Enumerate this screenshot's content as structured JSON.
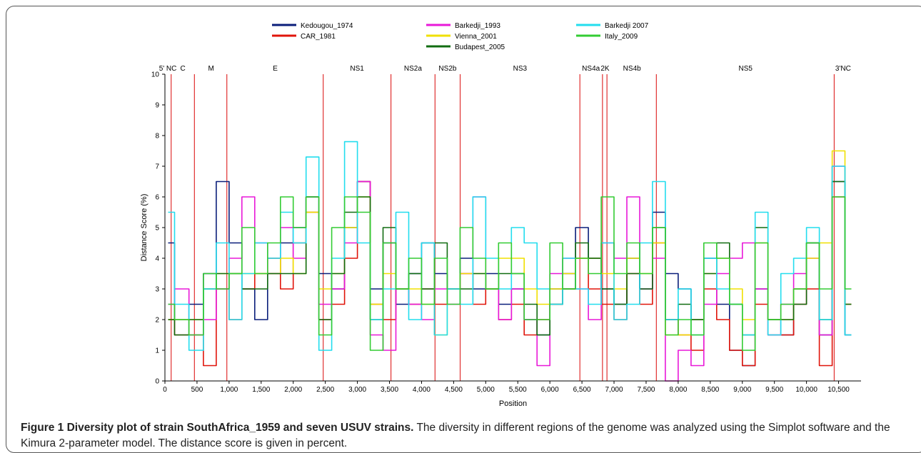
{
  "chart_data": {
    "type": "line",
    "title": "",
    "xlabel": "Position",
    "ylabel": "Distance Score (%)",
    "xlim": [
      0,
      10850
    ],
    "ylim": [
      0,
      10
    ],
    "x_ticks": [
      0,
      500,
      1000,
      1500,
      2000,
      2500,
      3000,
      3500,
      4000,
      4500,
      5000,
      5500,
      6000,
      6500,
      7000,
      7500,
      8000,
      8500,
      9000,
      9500,
      10000,
      10500
    ],
    "x_tick_labels": [
      "0",
      "500",
      "1,000",
      "1,500",
      "2,000",
      "2,500",
      "3,000",
      "3,500",
      "4,000",
      "4,500",
      "5,000",
      "5,500",
      "6,000",
      "6,500",
      "7,000",
      "7,500",
      "8,000",
      "8,500",
      "9,000",
      "9,500",
      "10,000",
      "10,500"
    ],
    "y_ticks": [
      0,
      1,
      2,
      3,
      4,
      5,
      6,
      7,
      8,
      9,
      10
    ],
    "grid": false,
    "legend_position": "top",
    "region_boundaries": [
      97,
      460,
      965,
      2467,
      3523,
      4210,
      4602,
      6468,
      6820,
      6890,
      7660,
      10432
    ],
    "region_labels": [
      {
        "label": "5' NC",
        "x": 45
      },
      {
        "label": "C",
        "x": 280
      },
      {
        "label": "M",
        "x": 720
      },
      {
        "label": "E",
        "x": 1720
      },
      {
        "label": "NS1",
        "x": 2995
      },
      {
        "label": "NS2a",
        "x": 3866
      },
      {
        "label": "NS2b",
        "x": 4406
      },
      {
        "label": "NS3",
        "x": 5535
      },
      {
        "label": "NS4a",
        "x": 6640
      },
      {
        "label": "2K",
        "x": 6860
      },
      {
        "label": "NS4b",
        "x": 7280
      },
      {
        "label": "NS5",
        "x": 9050
      },
      {
        "label": "3'NC",
        "x": 10570
      }
    ],
    "series": [
      {
        "name": "Kedougou_1974",
        "color": "#0a1e7a",
        "x": [
          50,
          250,
          500,
          700,
          900,
          1100,
          1300,
          1500,
          1700,
          1900,
          2100,
          2300,
          2500,
          2700,
          2900,
          3100,
          3300,
          3500,
          3700,
          3900,
          4100,
          4300,
          4500,
          4700,
          4900,
          5100,
          5300,
          5500,
          5700,
          5900,
          6100,
          6300,
          6500,
          6700,
          6900,
          7100,
          7300,
          7500,
          7700,
          7900,
          8100,
          8300,
          8500,
          8700,
          8900,
          9100,
          9300,
          9500,
          9700,
          9900,
          10100,
          10300,
          10500,
          10700
        ],
        "y": [
          4.5,
          2.0,
          2.5,
          3.5,
          6.5,
          4.5,
          3.0,
          2.0,
          3.5,
          4.5,
          5.0,
          6.0,
          3.5,
          3.0,
          5.0,
          6.5,
          3.0,
          4.5,
          2.5,
          3.5,
          4.5,
          3.5,
          3.0,
          4.0,
          3.0,
          3.5,
          2.5,
          3.0,
          2.0,
          1.5,
          3.0,
          3.5,
          5.0,
          4.0,
          3.0,
          2.5,
          4.0,
          3.0,
          5.5,
          3.5,
          3.0,
          2.0,
          4.0,
          2.5,
          1.0,
          0.5,
          3.0,
          2.0,
          1.5,
          3.0,
          4.5,
          1.5,
          6.5,
          1.5
        ]
      },
      {
        "name": "CAR_1981",
        "color": "#e0140a",
        "x": [
          50,
          250,
          500,
          700,
          900,
          1100,
          1300,
          1500,
          1700,
          1900,
          2100,
          2300,
          2500,
          2700,
          2900,
          3100,
          3300,
          3500,
          3700,
          3900,
          4100,
          4300,
          4500,
          4700,
          4900,
          5100,
          5300,
          5500,
          5700,
          5900,
          6100,
          6300,
          6500,
          6700,
          6900,
          7100,
          7300,
          7500,
          7700,
          7900,
          8100,
          8300,
          8500,
          8700,
          8900,
          9100,
          9300,
          9500,
          9700,
          9900,
          10100,
          10300,
          10500,
          10700
        ],
        "y": [
          2.0,
          1.5,
          1.5,
          0.5,
          3.0,
          2.0,
          3.0,
          3.5,
          4.0,
          3.0,
          4.5,
          5.5,
          2.0,
          2.5,
          4.0,
          6.5,
          2.5,
          2.0,
          3.0,
          2.5,
          3.0,
          2.5,
          3.0,
          3.5,
          2.5,
          3.0,
          2.0,
          2.5,
          1.5,
          2.0,
          2.5,
          3.0,
          4.0,
          3.0,
          2.5,
          2.0,
          3.5,
          2.5,
          4.5,
          2.0,
          1.5,
          1.0,
          3.0,
          2.0,
          1.0,
          0.5,
          2.5,
          1.5,
          1.5,
          2.5,
          3.0,
          0.5,
          6.0,
          2.5
        ]
      },
      {
        "name": "Barkedji_1993",
        "color": "#e818d8",
        "x": [
          50,
          250,
          500,
          700,
          900,
          1100,
          1300,
          1500,
          1700,
          1900,
          2100,
          2300,
          2500,
          2700,
          2900,
          3100,
          3300,
          3500,
          3700,
          3900,
          4100,
          4300,
          4500,
          4700,
          4900,
          5100,
          5300,
          5500,
          5700,
          5900,
          6100,
          6300,
          6500,
          6700,
          6900,
          7100,
          7300,
          7500,
          7700,
          7900,
          8100,
          8300,
          8500,
          8700,
          8900,
          9100,
          9300,
          9500,
          9700,
          9900,
          10100,
          10300,
          10500,
          10700
        ],
        "y": [
          2.5,
          3.0,
          1.5,
          2.0,
          3.0,
          4.0,
          6.0,
          4.5,
          3.5,
          5.0,
          4.0,
          6.0,
          2.5,
          3.0,
          4.5,
          6.5,
          1.5,
          1.0,
          3.0,
          2.5,
          2.0,
          3.0,
          2.5,
          3.5,
          6.0,
          3.0,
          2.0,
          3.0,
          2.0,
          0.5,
          3.5,
          4.0,
          3.0,
          2.0,
          4.5,
          4.0,
          6.0,
          3.0,
          4.0,
          0.0,
          1.0,
          0.5,
          2.5,
          3.5,
          4.0,
          4.5,
          3.0,
          1.5,
          2.5,
          3.5,
          4.0,
          1.5,
          7.0,
          2.5
        ]
      },
      {
        "name": "Vienna_2001",
        "color": "#f0e000",
        "x": [
          50,
          250,
          500,
          700,
          900,
          1100,
          1300,
          1500,
          1700,
          1900,
          2100,
          2300,
          2500,
          2700,
          2900,
          3100,
          3300,
          3500,
          3700,
          3900,
          4100,
          4300,
          4500,
          4700,
          4900,
          5100,
          5300,
          5500,
          5700,
          5900,
          6100,
          6300,
          6500,
          6700,
          6900,
          7100,
          7300,
          7500,
          7700,
          7900,
          8100,
          8300,
          8500,
          8700,
          8900,
          9100,
          9300,
          9500,
          9700,
          9900,
          10100,
          10300,
          10500,
          10700
        ],
        "y": [
          2.0,
          2.0,
          2.0,
          3.0,
          3.5,
          3.5,
          3.5,
          3.5,
          3.5,
          4.0,
          3.5,
          5.5,
          3.0,
          3.5,
          5.0,
          6.0,
          2.5,
          3.5,
          3.0,
          3.0,
          2.5,
          1.5,
          3.0,
          3.5,
          3.5,
          3.0,
          4.0,
          4.0,
          3.0,
          2.5,
          3.0,
          3.5,
          4.0,
          4.0,
          3.5,
          3.0,
          4.0,
          3.5,
          4.5,
          1.5,
          1.5,
          2.0,
          3.5,
          4.0,
          3.0,
          2.0,
          4.5,
          2.0,
          2.0,
          3.0,
          4.0,
          4.5,
          7.5,
          2.5
        ]
      },
      {
        "name": "Budapest_2005",
        "color": "#116c11",
        "x": [
          50,
          250,
          500,
          700,
          900,
          1100,
          1300,
          1500,
          1700,
          1900,
          2100,
          2300,
          2500,
          2700,
          2900,
          3100,
          3300,
          3500,
          3700,
          3900,
          4100,
          4300,
          4500,
          4700,
          4900,
          5100,
          5300,
          5500,
          5700,
          5900,
          6100,
          6300,
          6500,
          6700,
          6900,
          7100,
          7300,
          7500,
          7700,
          7900,
          8100,
          8300,
          8500,
          8700,
          8900,
          9100,
          9300,
          9500,
          9700,
          9900,
          10100,
          10300,
          10500,
          10700
        ],
        "y": [
          2.0,
          1.5,
          2.0,
          3.0,
          3.5,
          3.5,
          3.0,
          3.0,
          3.5,
          3.5,
          3.5,
          6.0,
          2.0,
          3.5,
          5.5,
          6.0,
          2.0,
          5.0,
          3.0,
          3.5,
          3.0,
          4.5,
          3.0,
          3.0,
          3.5,
          3.0,
          3.5,
          3.5,
          2.5,
          1.5,
          2.5,
          3.0,
          4.5,
          4.0,
          3.0,
          2.5,
          3.5,
          3.0,
          5.0,
          2.0,
          2.5,
          2.0,
          3.5,
          4.5,
          2.5,
          1.5,
          5.0,
          2.0,
          2.0,
          2.5,
          4.5,
          2.0,
          6.5,
          2.5
        ]
      },
      {
        "name": "Barkedji 2007",
        "color": "#22ddee",
        "x": [
          50,
          250,
          500,
          700,
          900,
          1100,
          1300,
          1500,
          1700,
          1900,
          2100,
          2300,
          2500,
          2700,
          2900,
          3100,
          3300,
          3500,
          3700,
          3900,
          4100,
          4300,
          4500,
          4700,
          4900,
          5100,
          5300,
          5500,
          5700,
          5900,
          6100,
          6300,
          6500,
          6700,
          6900,
          7100,
          7300,
          7500,
          7700,
          7900,
          8100,
          8300,
          8500,
          8700,
          8900,
          9100,
          9300,
          9500,
          9700,
          9900,
          10100,
          10300,
          10500,
          10700
        ],
        "y": [
          5.5,
          2.5,
          1.0,
          3.0,
          4.5,
          2.0,
          3.5,
          4.5,
          4.0,
          5.5,
          4.5,
          7.3,
          1.0,
          4.0,
          7.8,
          4.5,
          2.0,
          3.0,
          5.5,
          2.0,
          4.5,
          1.5,
          3.0,
          2.5,
          6.0,
          4.0,
          3.0,
          5.0,
          4.5,
          3.0,
          2.5,
          4.0,
          3.0,
          2.5,
          4.5,
          2.0,
          2.5,
          4.5,
          6.5,
          2.0,
          3.0,
          1.5,
          4.0,
          3.0,
          2.5,
          1.5,
          5.5,
          1.5,
          3.5,
          4.0,
          5.0,
          2.0,
          7.0,
          1.5
        ]
      },
      {
        "name": "Italy_2009",
        "color": "#33cc33",
        "x": [
          50,
          250,
          500,
          700,
          900,
          1100,
          1300,
          1500,
          1700,
          1900,
          2100,
          2300,
          2500,
          2700,
          2900,
          3100,
          3300,
          3500,
          3700,
          3900,
          4100,
          4300,
          4500,
          4700,
          4900,
          5100,
          5300,
          5500,
          5700,
          5900,
          6100,
          6300,
          6500,
          6700,
          6900,
          7100,
          7300,
          7500,
          7700,
          7900,
          8100,
          8300,
          8500,
          8700,
          8900,
          9100,
          9300,
          9500,
          9700,
          9900,
          10100,
          10300,
          10500,
          10700
        ],
        "y": [
          2.5,
          2.0,
          1.5,
          3.5,
          3.0,
          3.5,
          5.0,
          3.5,
          4.5,
          6.0,
          5.0,
          6.0,
          1.5,
          5.0,
          6.0,
          5.5,
          1.0,
          4.5,
          3.0,
          4.0,
          2.5,
          4.0,
          2.5,
          5.0,
          4.0,
          3.0,
          4.5,
          3.5,
          2.0,
          2.0,
          4.5,
          3.0,
          4.0,
          3.5,
          6.0,
          3.5,
          4.5,
          3.5,
          5.0,
          1.5,
          2.0,
          1.5,
          4.5,
          4.0,
          2.5,
          1.0,
          4.5,
          2.0,
          2.5,
          3.0,
          4.5,
          3.0,
          6.0,
          3.0
        ]
      }
    ]
  },
  "legend_columns": [
    [
      "Kedougou_1974",
      "CAR_1981"
    ],
    [
      "Barkedji_1993",
      "Vienna_2001",
      "Budapest_2005"
    ],
    [
      "Barkedji 2007",
      "Italy_2009"
    ]
  ],
  "caption": {
    "bold": "Figure 1 Diversity plot of strain SouthAfrica_1959 and seven USUV strains.",
    "text": " The diversity in different regions of the genome was analyzed using the Simplot software and the Kimura 2-parameter model. The distance score is given in percent."
  },
  "colors": {
    "boundary": "#e03030",
    "axis": "#000000"
  }
}
